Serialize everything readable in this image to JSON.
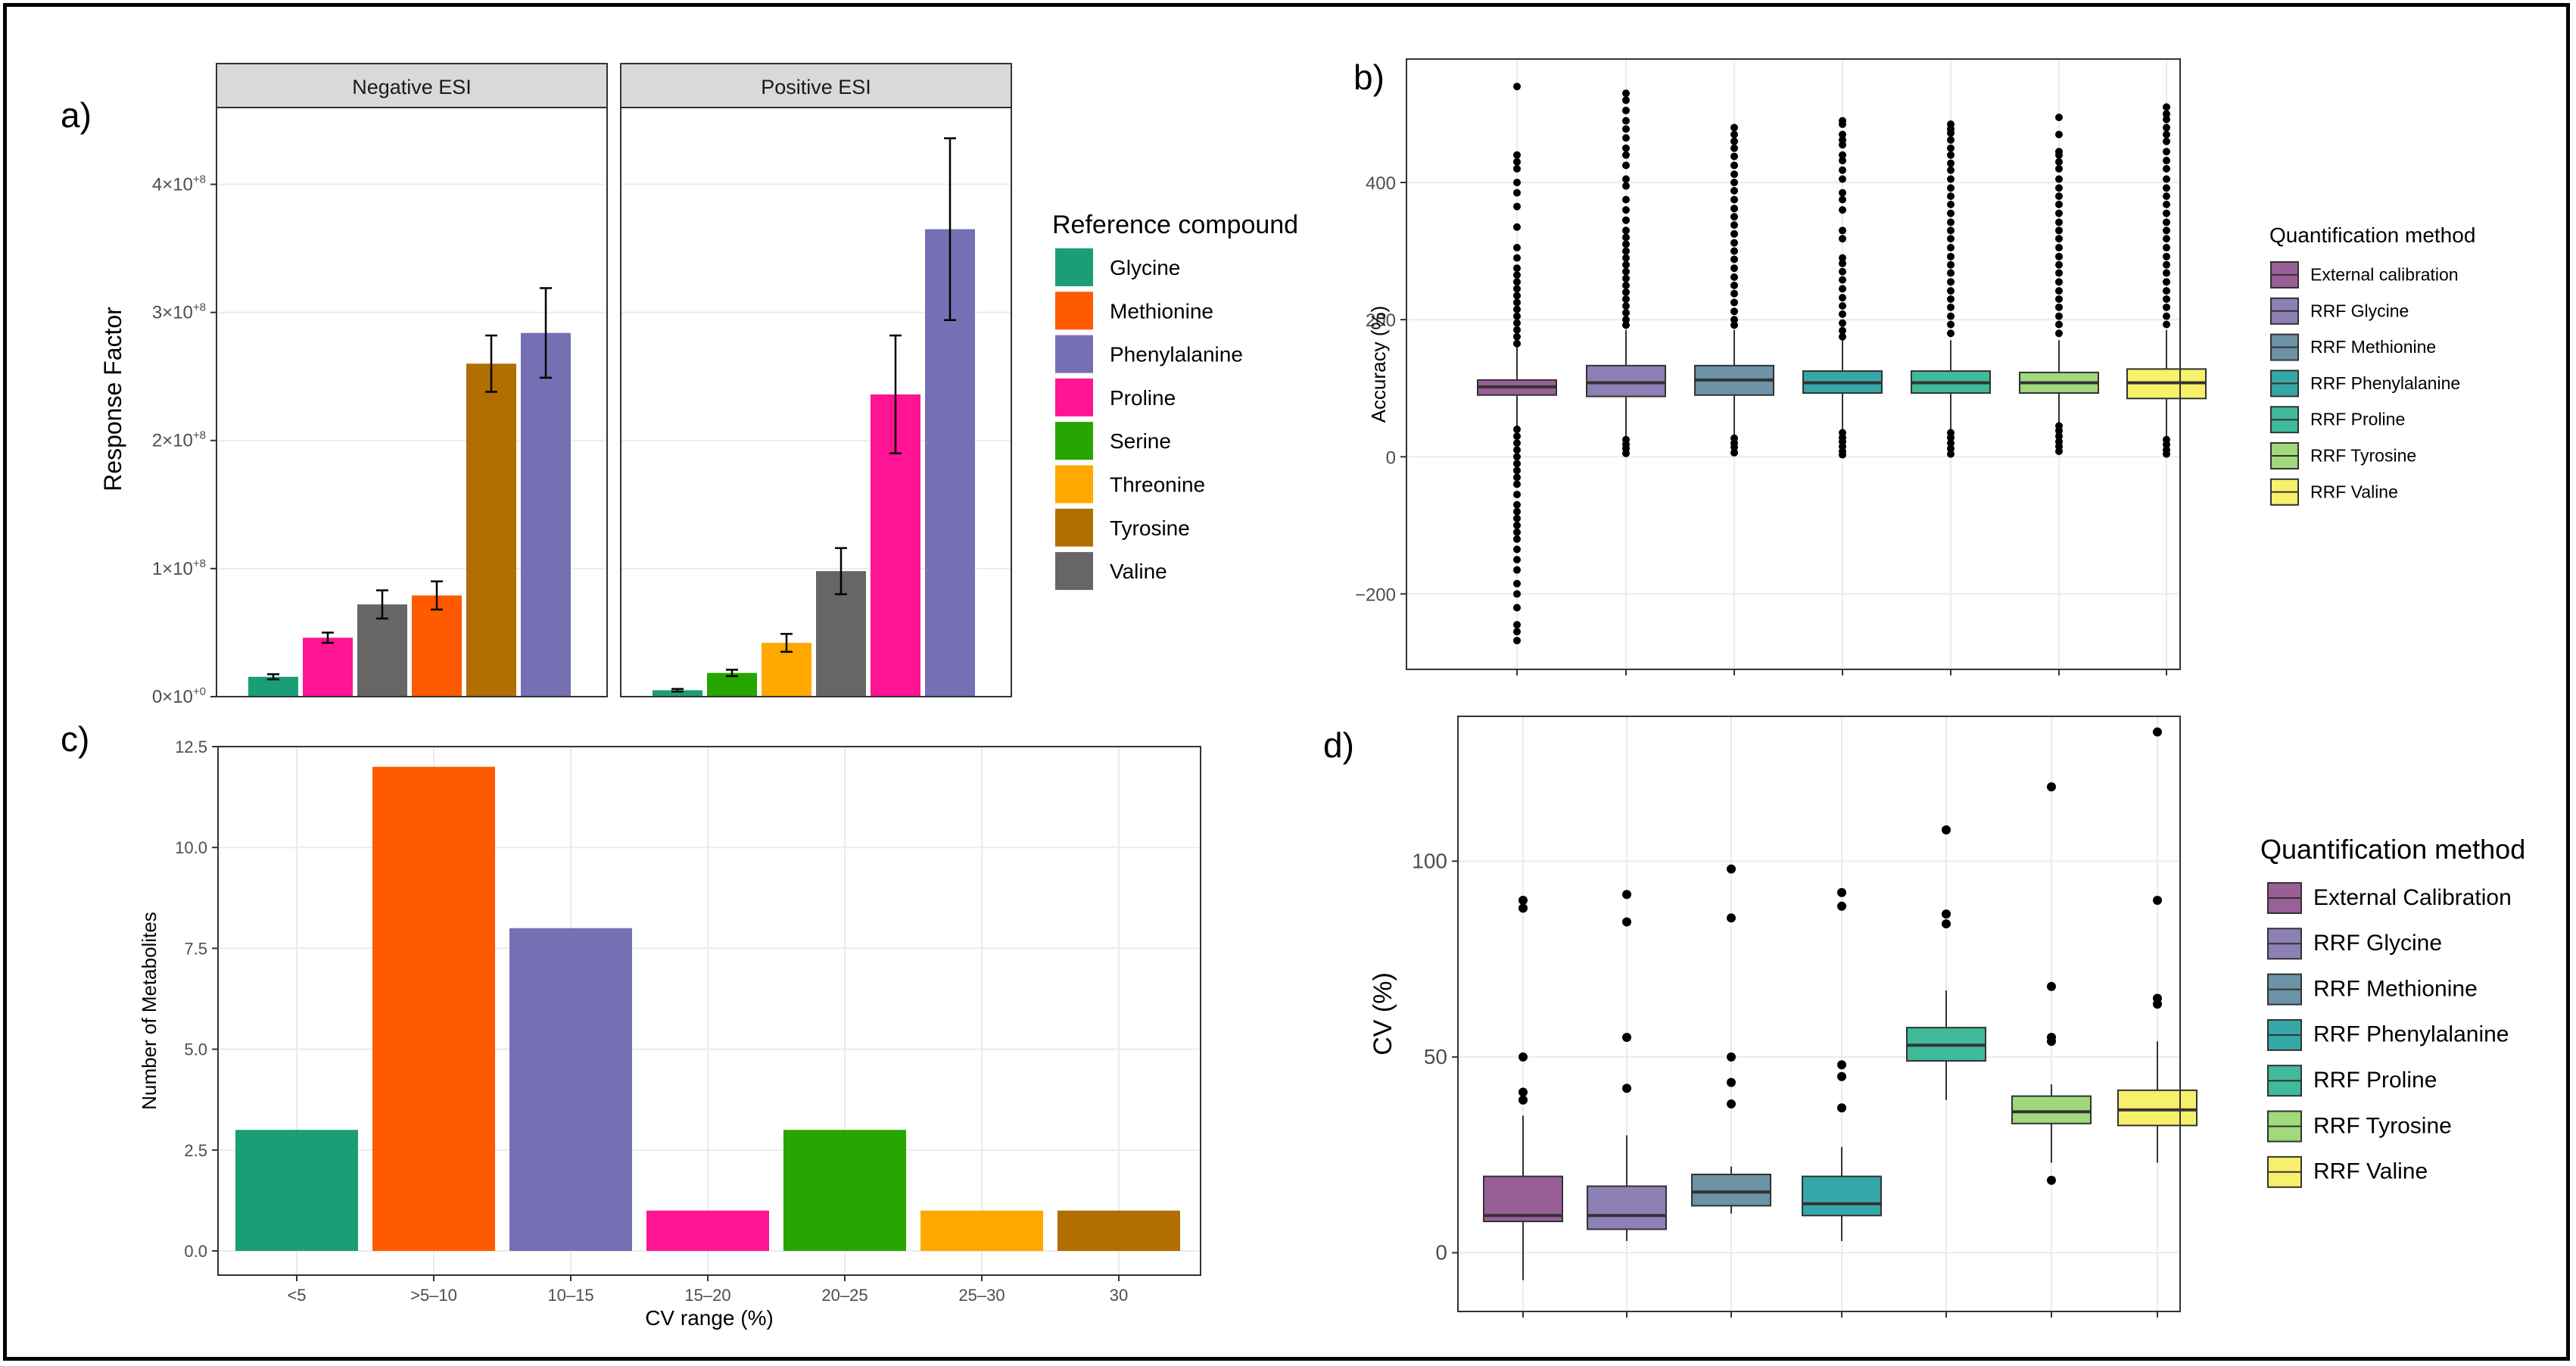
{
  "panel_labels": [
    "a)",
    "b)",
    "c)",
    "d)"
  ],
  "chart_data": [
    {
      "id": "a",
      "type": "bar",
      "facets": [
        "Negative ESI",
        "Positive ESI"
      ],
      "ylabel": "Response Factor",
      "ylim": [
        0,
        460000000.0
      ],
      "yticks": [
        0,
        100000000.0,
        200000000.0,
        300000000.0,
        400000000.0
      ],
      "ytick_labels": [
        {
          "base": "0×10",
          "exp": "+0"
        },
        {
          "base": "1×10",
          "exp": "+8"
        },
        {
          "base": "2×10",
          "exp": "+8"
        },
        {
          "base": "3×10",
          "exp": "+8"
        },
        {
          "base": "4×10",
          "exp": "+8"
        }
      ],
      "legend_title": "Reference compound",
      "legend": [
        {
          "name": "Glycine",
          "color": "#1B9E77"
        },
        {
          "name": "Methionine",
          "color": "#FF5A00"
        },
        {
          "name": "Phenylalanine",
          "color": "#7570B3"
        },
        {
          "name": "Proline",
          "color": "#FF1493"
        },
        {
          "name": "Serine",
          "color": "#27A500"
        },
        {
          "name": "Threonine",
          "color": "#FFA800"
        },
        {
          "name": "Tyrosine",
          "color": "#B06F00"
        },
        {
          "name": "Valine",
          "color": "#666666"
        }
      ],
      "negative": [
        {
          "name": "Glycine",
          "value": 15500000.0,
          "err": 2000000.0
        },
        {
          "name": "Proline",
          "value": 46000000.0,
          "err": 4000000.0
        },
        {
          "name": "Valine",
          "value": 72000000.0,
          "err": 11000000.0
        },
        {
          "name": "Methionine",
          "value": 79000000.0,
          "err": 11000000.0
        },
        {
          "name": "Tyrosine",
          "value": 260000000.0,
          "err": 22000000.0
        },
        {
          "name": "Phenylalanine",
          "value": 284000000.0,
          "err": 35000000.0
        }
      ],
      "positive": [
        {
          "name": "Glycine",
          "value": 5000000.0,
          "err": 1000000.0
        },
        {
          "name": "Serine",
          "value": 18500000.0,
          "err": 2500000.0
        },
        {
          "name": "Threonine",
          "value": 42000000.0,
          "err": 7000000.0
        },
        {
          "name": "Valine",
          "value": 98000000.0,
          "err": 18000000.0
        },
        {
          "name": "Proline",
          "value": 236000000.0,
          "err": 46000000.0
        },
        {
          "name": "Phenylalanine",
          "value": 365000000.0,
          "err": 71000000.0
        }
      ]
    },
    {
      "id": "b",
      "type": "box",
      "ylabel": "Accuracy (%)",
      "ylim": [
        -310,
        580
      ],
      "yticks": [
        -200,
        0,
        200,
        400
      ],
      "ytick_labels": [
        "−200",
        "0",
        "200",
        "400"
      ],
      "legend_title": "Quantification method",
      "series": [
        {
          "name": "External calibration",
          "color": "#995F97",
          "q1": 90,
          "median": 102,
          "q3": 112,
          "lo": 45,
          "hi": 160,
          "outliers": [
            540,
            440,
            430,
            420,
            400,
            385,
            365,
            335,
            305,
            290,
            275,
            265,
            255,
            245,
            235,
            225,
            215,
            205,
            195,
            185,
            175,
            165,
            40,
            30,
            20,
            10,
            0,
            -10,
            -20,
            -30,
            -40,
            -55,
            -70,
            -80,
            -90,
            -100,
            -110,
            -120,
            -135,
            -150,
            -165,
            -185,
            -200,
            -220,
            -245,
            -255,
            -268
          ]
        },
        {
          "name": "RRF Glycine",
          "color": "#8C80B4",
          "q1": 88,
          "median": 108,
          "q3": 133,
          "lo": 30,
          "hi": 185,
          "outliers": [
            530,
            520,
            505,
            490,
            478,
            465,
            450,
            440,
            425,
            405,
            395,
            375,
            360,
            345,
            330,
            320,
            310,
            300,
            290,
            280,
            270,
            260,
            250,
            240,
            230,
            220,
            210,
            200,
            192,
            25,
            18,
            12,
            5
          ]
        },
        {
          "name": "RRF Methionine",
          "color": "#6C93A6",
          "q1": 90,
          "median": 112,
          "q3": 133,
          "lo": 32,
          "hi": 185,
          "outliers": [
            480,
            470,
            460,
            450,
            438,
            425,
            412,
            400,
            388,
            375,
            362,
            350,
            338,
            325,
            312,
            300,
            288,
            275,
            262,
            250,
            238,
            225,
            212,
            200,
            192,
            27,
            20,
            14,
            6
          ]
        },
        {
          "name": "RRF Phenylalanine",
          "color": "#35A7A8",
          "q1": 93,
          "median": 108,
          "q3": 125,
          "lo": 40,
          "hi": 170,
          "outliers": [
            490,
            485,
            470,
            462,
            455,
            440,
            432,
            418,
            405,
            385,
            375,
            360,
            330,
            318,
            290,
            282,
            270,
            258,
            245,
            232,
            220,
            208,
            195,
            184,
            175,
            35,
            28,
            22,
            15,
            8,
            3
          ]
        },
        {
          "name": "RRF Proline",
          "color": "#3FBA9B",
          "q1": 93,
          "median": 108,
          "q3": 125,
          "lo": 40,
          "hi": 170,
          "outliers": [
            485,
            478,
            472,
            462,
            450,
            440,
            428,
            418,
            405,
            392,
            380,
            368,
            355,
            342,
            330,
            318,
            305,
            292,
            280,
            268,
            255,
            242,
            230,
            218,
            205,
            193,
            180,
            35,
            28,
            20,
            12,
            4
          ]
        },
        {
          "name": "RRF Tyrosine",
          "color": "#A0D87C",
          "q1": 93,
          "median": 108,
          "q3": 123,
          "lo": 40,
          "hi": 170,
          "outliers": [
            495,
            470,
            445,
            440,
            430,
            420,
            405,
            392,
            380,
            368,
            355,
            342,
            330,
            318,
            305,
            292,
            280,
            268,
            255,
            242,
            230,
            218,
            205,
            193,
            180,
            45,
            38,
            30,
            22,
            15,
            8
          ]
        },
        {
          "name": "RRF Valine",
          "color": "#F6F06B",
          "q1": 85,
          "median": 108,
          "q3": 128,
          "lo": 30,
          "hi": 185,
          "outliers": [
            510,
            500,
            492,
            480,
            470,
            460,
            445,
            432,
            420,
            405,
            392,
            380,
            368,
            355,
            342,
            330,
            318,
            305,
            292,
            280,
            268,
            255,
            242,
            230,
            218,
            205,
            193,
            25,
            18,
            10,
            4
          ]
        }
      ]
    },
    {
      "id": "c",
      "type": "bar",
      "xlabel": "CV range (%)",
      "ylabel": "Number of Metabolites",
      "ylim": [
        -0.6,
        12.5
      ],
      "yticks": [
        0,
        2.5,
        5,
        7.5,
        10,
        12.5
      ],
      "ytick_labels": [
        "0.0",
        "2.5",
        "5.0",
        "7.5",
        "10.0",
        "12.5"
      ],
      "categories": [
        "<5",
        ">5–10",
        "10–15",
        "15–20",
        "20–25",
        "25–30",
        "30"
      ],
      "values": [
        3,
        12,
        8,
        1,
        3,
        1,
        1
      ],
      "colors": [
        "#1B9E77",
        "#FF5A00",
        "#7570B3",
        "#FF1493",
        "#27A500",
        "#FFA800",
        "#B06F00"
      ]
    },
    {
      "id": "d",
      "type": "box",
      "ylabel": "CV (%)",
      "ylim": [
        -15,
        137
      ],
      "yticks": [
        0,
        50,
        100
      ],
      "ytick_labels": [
        "0",
        "50",
        "100"
      ],
      "legend_title": "Quantification method",
      "series": [
        {
          "name": "External Calibration",
          "color": "#995F97",
          "q1": 8,
          "median": 9.5,
          "q3": 19.5,
          "lo": -7,
          "hi": 35,
          "outliers": [
            90,
            88,
            50,
            41,
            39
          ]
        },
        {
          "name": "RRF Glycine",
          "color": "#8C80B4",
          "q1": 6,
          "median": 9.5,
          "q3": 17,
          "lo": 3,
          "hi": 30,
          "outliers": [
            91.5,
            84.5,
            55,
            42
          ]
        },
        {
          "name": "RRF Methionine",
          "color": "#6C93A6",
          "q1": 12,
          "median": 15.5,
          "q3": 20,
          "lo": 10,
          "hi": 22,
          "outliers": [
            98,
            85.5,
            50,
            43.5,
            38
          ]
        },
        {
          "name": "RRF Phenylalanine",
          "color": "#35A7A8",
          "q1": 9.5,
          "median": 12.5,
          "q3": 19.5,
          "lo": 3,
          "hi": 27,
          "outliers": [
            92,
            88.5,
            48,
            45,
            37
          ]
        },
        {
          "name": "RRF Proline",
          "color": "#3FBA9B",
          "q1": 49,
          "median": 53,
          "q3": 57.5,
          "lo": 39,
          "hi": 67,
          "outliers": [
            108,
            86.5,
            84
          ]
        },
        {
          "name": "RRF Tyrosine",
          "color": "#A0D87C",
          "q1": 33,
          "median": 36,
          "q3": 40,
          "lo": 23,
          "hi": 43,
          "outliers": [
            119,
            68,
            55,
            54,
            18.5
          ]
        },
        {
          "name": "RRF Valine",
          "color": "#F6F06B",
          "q1": 32.5,
          "median": 36.5,
          "q3": 41.5,
          "lo": 23,
          "hi": 54,
          "outliers": [
            133,
            90,
            65,
            63.5
          ]
        }
      ]
    }
  ]
}
